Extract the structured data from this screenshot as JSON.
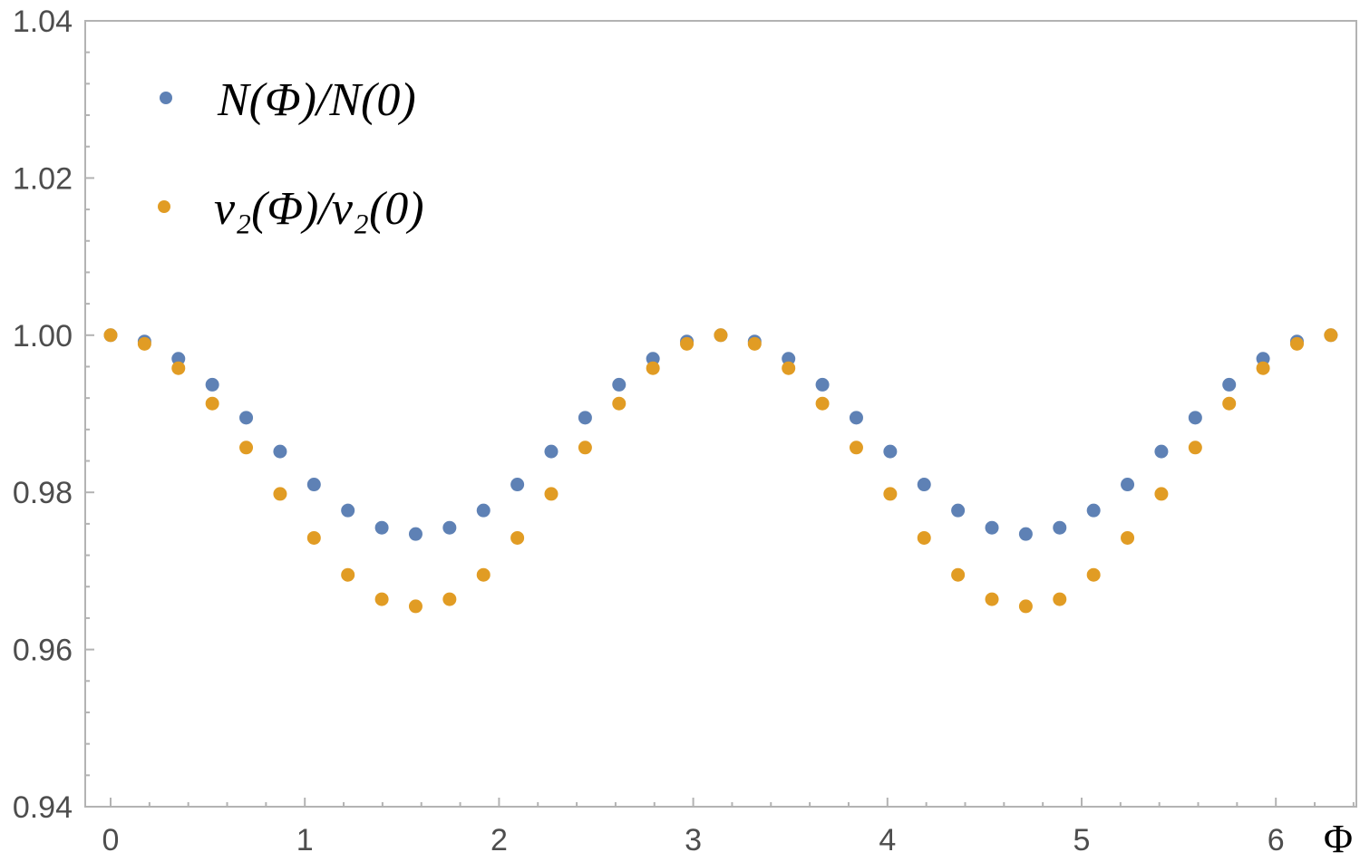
{
  "chart_data": {
    "type": "scatter",
    "title": "",
    "xlabel": "Φ",
    "ylabel": "",
    "xlim": [
      0,
      6.3
    ],
    "ylim": [
      0.94,
      1.04
    ],
    "x_ticks": [
      "0",
      "1",
      "2",
      "3",
      "4",
      "5",
      "6"
    ],
    "y_ticks": [
      "0.94",
      "0.96",
      "0.98",
      "1.00",
      "1.02",
      "1.04"
    ],
    "legend_placement": "top-left",
    "grid": false,
    "x": [
      0.0,
      0.1745,
      0.3491,
      0.5236,
      0.6981,
      0.8727,
      1.0472,
      1.2217,
      1.3963,
      1.5708,
      1.7453,
      1.9199,
      2.0944,
      2.2689,
      2.4435,
      2.618,
      2.7925,
      2.9671,
      3.1416,
      3.3161,
      3.4907,
      3.6652,
      3.8397,
      4.0143,
      4.1888,
      4.3633,
      4.5379,
      4.7124,
      4.8869,
      5.0615,
      5.236,
      5.4105,
      5.5851,
      5.7596,
      5.9341,
      6.1087,
      6.2832
    ],
    "series": [
      {
        "name": "N(Φ)/N(0)",
        "color": "#5e81b5",
        "values": [
          1.0,
          0.9992,
          0.997,
          0.9937,
          0.9895,
          0.9852,
          0.981,
          0.9777,
          0.9755,
          0.9747,
          0.9755,
          0.9777,
          0.981,
          0.9852,
          0.9895,
          0.9937,
          0.997,
          0.9992,
          1.0,
          0.9992,
          0.997,
          0.9937,
          0.9895,
          0.9852,
          0.981,
          0.9777,
          0.9755,
          0.9747,
          0.9755,
          0.9777,
          0.981,
          0.9852,
          0.9895,
          0.9937,
          0.997,
          0.9992,
          1.0
        ]
      },
      {
        "name": "v₂(Φ)/v₂(0)",
        "color": "#e19c24",
        "values": [
          1.0,
          0.9989,
          0.9958,
          0.9913,
          0.9857,
          0.9798,
          0.9742,
          0.9695,
          0.9664,
          0.9655,
          0.9664,
          0.9695,
          0.9742,
          0.9798,
          0.9857,
          0.9913,
          0.9958,
          0.9989,
          1.0,
          0.9989,
          0.9958,
          0.9913,
          0.9857,
          0.9798,
          0.9742,
          0.9695,
          0.9664,
          0.9655,
          0.9664,
          0.9695,
          0.9742,
          0.9798,
          0.9857,
          0.9913,
          0.9958,
          0.9989,
          1.0
        ]
      }
    ]
  }
}
